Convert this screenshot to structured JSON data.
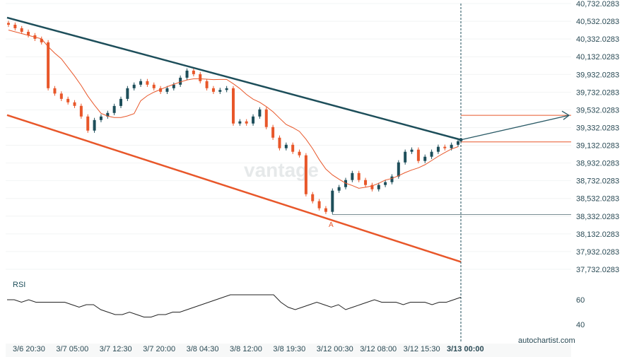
{
  "chart_data": {
    "type": "candlestick",
    "y_ticks": [
      "40,732.0283",
      "40,532.0283",
      "40,332.0283",
      "40,132.0283",
      "39,932.0283",
      "39,732.0283",
      "39,532.0283",
      "39,332.0283",
      "39,132.0283",
      "38,932.0283",
      "38,732.0283",
      "38,532.0283",
      "38,332.0283",
      "38,132.0283",
      "37,932.0283",
      "37,732.0283"
    ],
    "ylim": [
      37732.0283,
      40732.0283
    ],
    "x_ticks": [
      "3/6 20:30",
      "3/7 05:00",
      "3/7 12:30",
      "3/7 20:00",
      "3/8 04:30",
      "3/8 12:00",
      "3/8 19:30",
      "3/12 00:30",
      "3/12 08:00",
      "3/12 15:30",
      "3/13 00:00"
    ],
    "closes": [
      40493,
      40453,
      40413,
      40374,
      40334,
      40294,
      39776,
      39716,
      39656,
      39617,
      39577,
      39457,
      39298,
      39417,
      39457,
      39497,
      39576,
      39656,
      39776,
      39816,
      39856,
      39816,
      39776,
      39736,
      39776,
      39816,
      39895,
      39975,
      39935,
      39856,
      39776,
      39736,
      39756,
      39776,
      39378,
      39402,
      39378,
      39457,
      39537,
      39338,
      39218,
      39099,
      39138,
      39059,
      39019,
      38580,
      38501,
      38421,
      38381,
      38620,
      38660,
      38740,
      38819,
      38740,
      38684,
      38636,
      38684,
      38716,
      38780,
      38939,
      39059,
      39083,
      38955,
      39003,
      39059,
      39115,
      39099,
      39138,
      39178
    ],
    "resistance_line": {
      "start": 40573,
      "end": 39194,
      "color": "#1d4e5a"
    },
    "support_line": {
      "start": 39473,
      "end": 37816,
      "color": "#e8572a"
    },
    "target_level": 39470,
    "breakout_level": 39170,
    "low_level": 38350,
    "point_label": "A",
    "up_color": "#1d4e5a",
    "down_color": "#e8572a",
    "rsi": {
      "label": "RSI",
      "ticks": [
        "60",
        "40"
      ],
      "values": [
        60,
        60,
        58,
        60,
        58,
        58,
        58,
        58,
        58,
        56,
        54,
        56,
        56,
        52,
        50,
        48,
        48,
        50,
        48,
        46,
        46,
        48,
        48,
        50,
        50,
        52,
        54,
        56,
        58,
        60,
        62,
        64,
        64,
        64,
        64,
        64,
        64,
        64,
        58,
        54,
        52,
        54,
        56,
        58,
        56,
        54,
        56,
        52,
        54,
        56,
        58,
        60,
        58,
        58,
        58,
        56,
        58,
        58,
        58,
        56,
        58,
        58,
        60,
        62
      ]
    }
  },
  "watermark": "vantage",
  "credit": "autochartist.com"
}
